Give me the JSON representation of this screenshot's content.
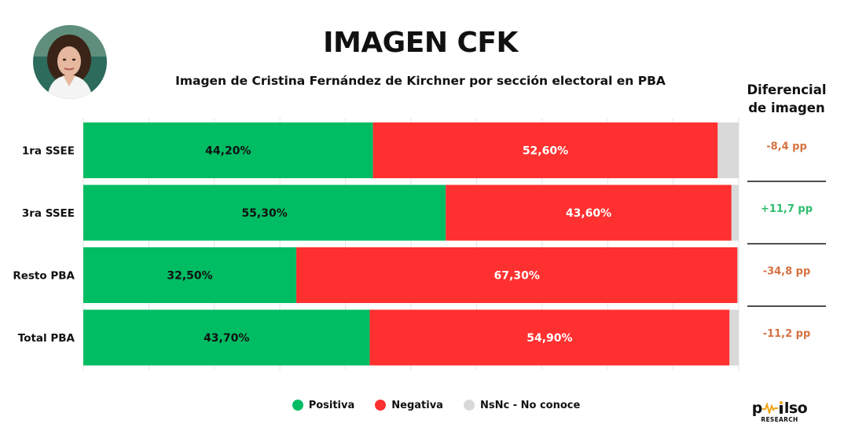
{
  "header": {
    "title": "IMAGEN CFK",
    "subtitle": "Imagen de Cristina Fernández de Kirchner por sección electoral en PBA"
  },
  "diff_header": {
    "line1": "Diferencial",
    "line2": "de imagen"
  },
  "colors": {
    "positive": "#00BC63",
    "negative": "#FF3030",
    "nsnc": "#D9D9D9",
    "diff_negative": "#D5713F",
    "diff_positive": "#2DBE6C",
    "grid": "#E3E3E3"
  },
  "legend": {
    "positive": "Positiva",
    "negative": "Negativa",
    "nsnc": "NsNc - No conoce"
  },
  "logo": {
    "text_start": "p",
    "text_end": "lso",
    "sub": "RESEARCH"
  },
  "chart_data": {
    "type": "bar",
    "orientation": "horizontal",
    "stacked": true,
    "title": "IMAGEN CFK",
    "subtitle": "Imagen de Cristina Fernández de Kirchner por sección electoral en PBA",
    "categories": [
      "1ra SSEE",
      "3ra SSEE",
      "Resto PBA",
      "Total PBA"
    ],
    "xlim": [
      0,
      100
    ],
    "grid": true,
    "legend_position": "bottom",
    "series": [
      {
        "name": "Positiva",
        "values": [
          44.2,
          55.3,
          32.5,
          43.7
        ],
        "labels": [
          "44,20%",
          "55,30%",
          "32,50%",
          "43,70%"
        ]
      },
      {
        "name": "Negativa",
        "values": [
          52.6,
          43.6,
          67.3,
          54.9
        ],
        "labels": [
          "52,60%",
          "43,60%",
          "67,30%",
          "54,90%"
        ]
      },
      {
        "name": "NsNc - No conoce",
        "values": [
          3.2,
          1.1,
          0.2,
          1.4
        ]
      }
    ],
    "diferencial": {
      "label": "Diferencial de imagen",
      "values": [
        -8.4,
        11.7,
        -34.8,
        -11.2
      ],
      "labels": [
        "-8,4 pp",
        "+11,7 pp",
        "-34,8 pp",
        "-11,2 pp"
      ]
    }
  }
}
